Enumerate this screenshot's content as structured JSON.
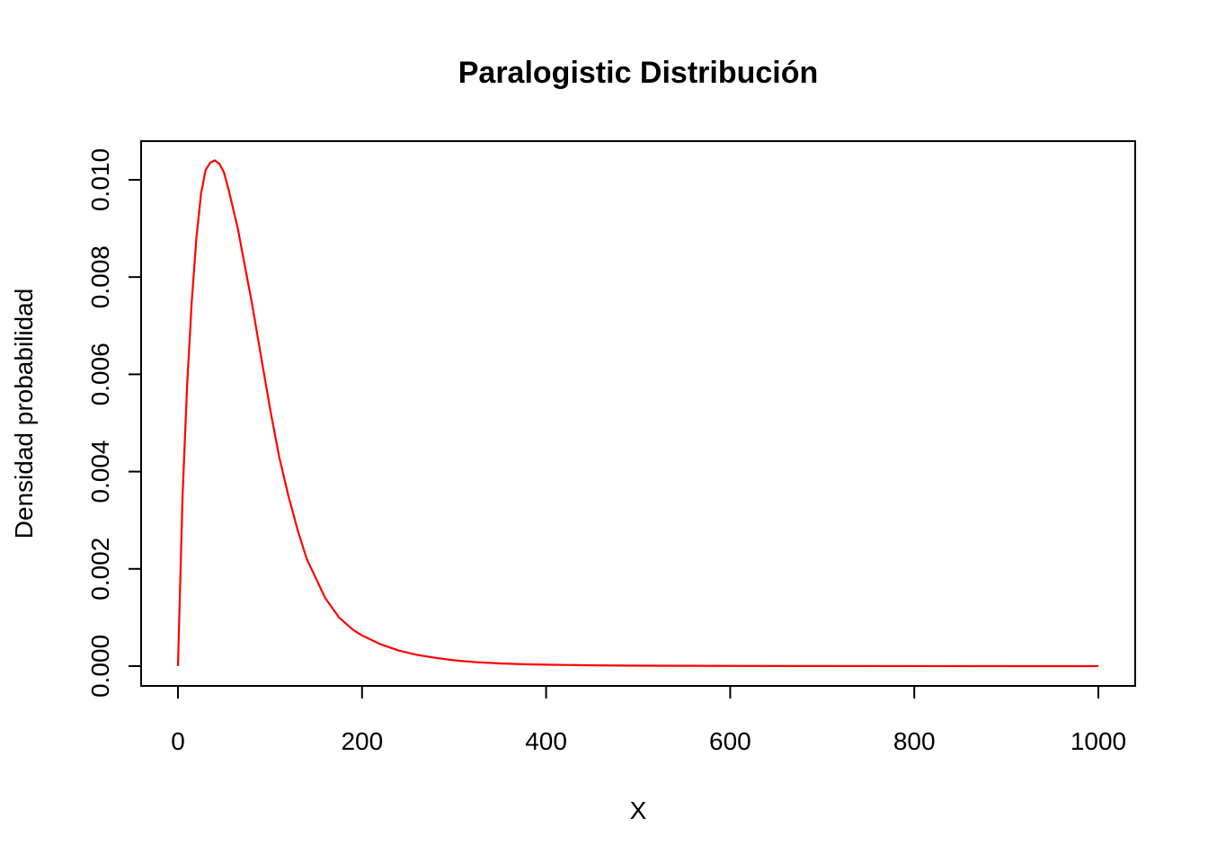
{
  "chart_data": {
    "type": "line",
    "title": "Paralogistic Distribución",
    "xlabel": "X",
    "ylabel": "Densidad probabilidad",
    "xlim": [
      0,
      1000
    ],
    "ylim": [
      0,
      0.0104
    ],
    "x_ticks": [
      0,
      200,
      400,
      600,
      800,
      1000
    ],
    "x_tick_labels": [
      "0",
      "200",
      "400",
      "600",
      "800",
      "1000"
    ],
    "y_ticks": [
      0,
      0.002,
      0.004,
      0.006,
      0.008,
      0.01
    ],
    "y_tick_labels": [
      "0.000",
      "0.002",
      "0.004",
      "0.006",
      "0.008",
      "0.010"
    ],
    "grid": false,
    "legend": "none",
    "series": [
      {
        "color": "#ff0000",
        "x": [
          0,
          5,
          10,
          15,
          20,
          25,
          30,
          35,
          40,
          45,
          50,
          55,
          60,
          65,
          70,
          80,
          90,
          100,
          110,
          120,
          130,
          140,
          150,
          160,
          175,
          190,
          200,
          220,
          240,
          260,
          280,
          300,
          325,
          350,
          375,
          400,
          450,
          500,
          600,
          700,
          800,
          900,
          1000
        ],
        "y": [
          0,
          0.0035,
          0.0058,
          0.0075,
          0.0088,
          0.0097,
          0.0102,
          0.01035,
          0.0104,
          0.01033,
          0.01015,
          0.0098,
          0.0094,
          0.009,
          0.0085,
          0.0075,
          0.0064,
          0.0053,
          0.0043,
          0.0035,
          0.0028,
          0.0022,
          0.0018,
          0.0014,
          0.001,
          0.00075,
          0.00063,
          0.00045,
          0.00032,
          0.00023,
          0.00017,
          0.00012,
          8e-05,
          5.5e-05,
          4e-05,
          3e-05,
          1.6e-05,
          9e-06,
          4e-06,
          2e-06,
          1e-06,
          5e-07,
          3e-07
        ]
      }
    ]
  }
}
